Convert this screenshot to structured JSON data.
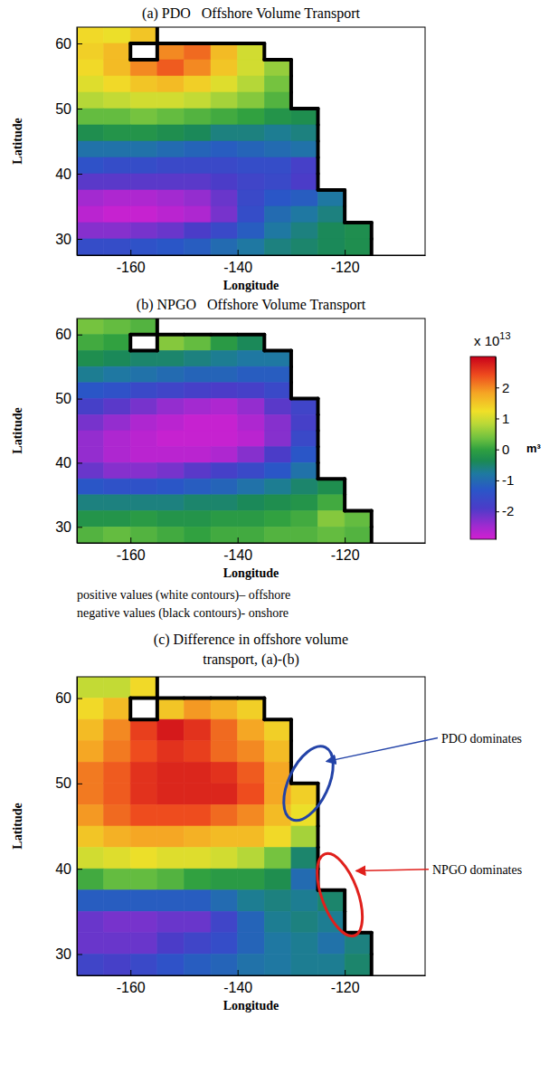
{
  "chart_data": [
    {
      "type": "heatmap",
      "title": "(a) PDO   Offshore Volume Transport",
      "x_label": "Longitude",
      "y_label": "Latitude",
      "x": [
        -167.5,
        -162.5,
        -157.5,
        -152.5,
        -147.5,
        -142.5,
        -137.5,
        -132.5,
        -127.5,
        -122.5,
        -117.5,
        -112.5,
        -107.5
      ],
      "y": [
        61.25,
        58.75,
        56.25,
        53.75,
        51.25,
        48.75,
        46.25,
        43.75,
        41.25,
        38.75,
        36.25,
        33.75,
        31.25,
        28.75
      ],
      "cells": [
        [
          1.3,
          1.2,
          1.5,
          null,
          null,
          null,
          null,
          null,
          null,
          null,
          null,
          null,
          null
        ],
        [
          1.4,
          1.6,
          null,
          2.0,
          2.2,
          1.6,
          1.0,
          null,
          null,
          null,
          null,
          null,
          null
        ],
        [
          1.3,
          1.6,
          2.0,
          2.3,
          2.0,
          1.5,
          1.0,
          0.6,
          null,
          null,
          null,
          null,
          null
        ],
        [
          1.1,
          1.3,
          1.5,
          1.6,
          1.4,
          1.1,
          0.8,
          0.4,
          null,
          null,
          null,
          null,
          null
        ],
        [
          0.8,
          0.9,
          1.0,
          1.0,
          0.9,
          0.7,
          0.5,
          0.2,
          null,
          null,
          null,
          null,
          null
        ],
        [
          0.3,
          0.3,
          0.4,
          0.3,
          0.2,
          0.1,
          0.0,
          -0.2,
          -0.3,
          null,
          null,
          null,
          null
        ],
        [
          -0.3,
          -0.2,
          -0.2,
          -0.3,
          -0.4,
          -0.6,
          -0.6,
          -0.7,
          -0.6,
          null,
          null,
          null,
          null
        ],
        [
          -0.9,
          -0.9,
          -0.9,
          -1.0,
          -1.1,
          -1.2,
          -1.1,
          -1.0,
          -0.9,
          null,
          null,
          null,
          null
        ],
        [
          -1.4,
          -1.5,
          -1.5,
          -1.6,
          -1.6,
          -1.6,
          -1.5,
          -1.5,
          -1.8,
          null,
          null,
          null,
          null
        ],
        [
          -2.0,
          -2.0,
          -2.0,
          -2.0,
          -2.0,
          -1.9,
          -1.7,
          -1.6,
          -1.9,
          null,
          null,
          null,
          null
        ],
        [
          -2.5,
          -2.6,
          -2.6,
          -2.5,
          -2.4,
          -2.1,
          -1.6,
          -1.3,
          -1.2,
          -0.8,
          null,
          null,
          null
        ],
        [
          -2.7,
          -2.8,
          -2.8,
          -2.7,
          -2.6,
          -2.2,
          -1.5,
          -1.0,
          -0.8,
          -0.6,
          null,
          null,
          null
        ],
        [
          -2.3,
          -2.3,
          -2.2,
          -2.1,
          -1.9,
          -1.6,
          -1.2,
          -0.8,
          -0.6,
          -0.4,
          -0.3,
          null,
          null
        ],
        [
          -1.5,
          -1.5,
          -1.4,
          -1.3,
          -1.2,
          -1.0,
          -0.8,
          -0.6,
          -0.5,
          -0.4,
          -0.3,
          null,
          null
        ]
      ],
      "xlim": [
        -170,
        -105
      ],
      "ylim": [
        27.5,
        62.5
      ],
      "xticks": [
        -160,
        -140,
        -120
      ],
      "yticks": [
        30,
        40,
        50,
        60
      ]
    },
    {
      "type": "heatmap",
      "title": "(b) NPGO   Offshore Volume Transport",
      "x_label": "Longitude",
      "y_label": "Latitude",
      "x": [
        -167.5,
        -162.5,
        -157.5,
        -152.5,
        -147.5,
        -142.5,
        -137.5,
        -132.5,
        -127.5,
        -122.5,
        -117.5,
        -112.5,
        -107.5
      ],
      "y": [
        61.25,
        58.75,
        56.25,
        53.75,
        51.25,
        48.75,
        46.25,
        43.75,
        41.25,
        38.75,
        36.25,
        33.75,
        31.25,
        28.75
      ],
      "cells": [
        [
          0.4,
          0.3,
          0.2,
          null,
          null,
          null,
          null,
          null,
          null,
          null,
          null,
          null,
          null
        ],
        [
          0.1,
          0.0,
          null,
          0.5,
          0.3,
          -0.1,
          -0.4,
          null,
          null,
          null,
          null,
          null,
          null
        ],
        [
          -0.3,
          -0.4,
          -0.5,
          -0.5,
          -0.6,
          -0.7,
          -0.8,
          -0.8,
          null,
          null,
          null,
          null,
          null
        ],
        [
          -0.7,
          -0.8,
          -0.9,
          -1.0,
          -1.1,
          -1.1,
          -1.2,
          -1.2,
          null,
          null,
          null,
          null,
          null
        ],
        [
          -1.3,
          -1.4,
          -1.6,
          -1.7,
          -1.8,
          -1.9,
          -1.8,
          -1.6,
          null,
          null,
          null,
          null,
          null
        ],
        [
          -1.8,
          -2.0,
          -2.2,
          -2.4,
          -2.5,
          -2.6,
          -2.4,
          -2.0,
          -1.7,
          null,
          null,
          null,
          null
        ],
        [
          -2.2,
          -2.4,
          -2.6,
          -2.7,
          -2.8,
          -2.8,
          -2.6,
          -2.3,
          -1.8,
          null,
          null,
          null,
          null
        ],
        [
          -2.4,
          -2.6,
          -2.7,
          -2.8,
          -2.8,
          -2.8,
          -2.7,
          -2.3,
          -1.6,
          null,
          null,
          null,
          null
        ],
        [
          -2.4,
          -2.6,
          -2.7,
          -2.7,
          -2.7,
          -2.6,
          -2.3,
          -1.9,
          -1.3,
          null,
          null,
          null,
          null
        ],
        [
          -2.1,
          -2.3,
          -2.3,
          -2.2,
          -2.0,
          -1.8,
          -1.6,
          -1.3,
          -0.9,
          null,
          null,
          null,
          null
        ],
        [
          -1.3,
          -1.4,
          -1.4,
          -1.3,
          -1.2,
          -1.1,
          -0.9,
          -0.7,
          -0.5,
          -0.3,
          null,
          null,
          null
        ],
        [
          -0.6,
          -0.6,
          -0.6,
          -0.6,
          -0.5,
          -0.5,
          -0.4,
          -0.3,
          -0.2,
          0.1,
          null,
          null,
          null
        ],
        [
          -0.2,
          -0.2,
          -0.1,
          -0.2,
          -0.2,
          -0.1,
          -0.1,
          0.0,
          0.1,
          0.5,
          0.3,
          null,
          null
        ],
        [
          0.2,
          0.3,
          0.2,
          0.1,
          0.0,
          0.1,
          0.1,
          0.2,
          0.2,
          0.3,
          0.2,
          null,
          null
        ]
      ],
      "xlim": [
        -170,
        -105
      ],
      "ylim": [
        27.5,
        62.5
      ],
      "xticks": [
        -160,
        -140,
        -120
      ],
      "yticks": [
        30,
        40,
        50,
        60
      ],
      "colorbar": {
        "range": [
          -2.9,
          3.0
        ],
        "ticks": [
          -2,
          -1,
          0,
          1,
          2
        ],
        "multiplier": "x 10",
        "exponent": 13,
        "unit": "m³"
      },
      "notes": [
        "positive values (white contours)– offshore",
        "negative values (black contours)- onshore"
      ]
    },
    {
      "type": "heatmap",
      "title": "(c) Difference in offshore volume transport, (a)-(b)",
      "x_label": "Longitude",
      "y_label": "Latitude",
      "x": [
        -167.5,
        -162.5,
        -157.5,
        -152.5,
        -147.5,
        -142.5,
        -137.5,
        -132.5,
        -127.5,
        -122.5,
        -117.5,
        -112.5,
        -107.5
      ],
      "y": [
        61.25,
        58.75,
        56.25,
        53.75,
        51.25,
        48.75,
        46.25,
        43.75,
        41.25,
        38.75,
        36.25,
        33.75,
        31.25,
        28.75
      ],
      "cells": [
        [
          0.9,
          0.9,
          1.3,
          null,
          null,
          null,
          null,
          null,
          null,
          null,
          null,
          null,
          null
        ],
        [
          1.3,
          1.6,
          null,
          1.5,
          1.9,
          1.7,
          1.4,
          null,
          null,
          null,
          null,
          null,
          null
        ],
        [
          1.6,
          2.0,
          2.5,
          2.8,
          2.6,
          2.2,
          1.8,
          1.4,
          null,
          null,
          null,
          null,
          null
        ],
        [
          1.8,
          2.1,
          2.4,
          2.6,
          2.5,
          2.2,
          2.0,
          1.6,
          null,
          null,
          null,
          null,
          null
        ],
        [
          2.1,
          2.3,
          2.6,
          2.7,
          2.7,
          2.6,
          2.3,
          1.8,
          null,
          null,
          null,
          null,
          null
        ],
        [
          2.1,
          2.3,
          2.6,
          2.7,
          2.7,
          2.7,
          2.4,
          1.8,
          1.4,
          null,
          null,
          null,
          null
        ],
        [
          1.9,
          2.2,
          2.4,
          2.4,
          2.4,
          2.2,
          2.0,
          1.6,
          1.2,
          null,
          null,
          null,
          null
        ],
        [
          1.5,
          1.7,
          1.8,
          1.8,
          1.7,
          1.6,
          1.6,
          1.3,
          0.7,
          null,
          null,
          null,
          null
        ],
        [
          1.0,
          1.1,
          1.2,
          1.1,
          1.1,
          1.0,
          0.8,
          0.4,
          -0.5,
          null,
          null,
          null,
          null
        ],
        [
          0.1,
          0.3,
          0.3,
          0.2,
          0.0,
          -0.1,
          -0.1,
          -0.3,
          -1.0,
          null,
          null,
          null,
          null
        ],
        [
          -1.2,
          -1.2,
          -1.2,
          -1.2,
          -1.2,
          -1.0,
          -0.7,
          -0.6,
          -0.7,
          -0.5,
          null,
          null,
          null
        ],
        [
          -2.1,
          -2.2,
          -2.2,
          -2.1,
          -2.1,
          -1.7,
          -1.1,
          -0.7,
          -0.6,
          -0.7,
          null,
          null,
          null
        ],
        [
          -2.1,
          -2.1,
          -2.1,
          -1.9,
          -1.7,
          -1.5,
          -1.1,
          -0.8,
          -0.7,
          -0.9,
          -0.6,
          null,
          null
        ],
        [
          -1.7,
          -1.8,
          -1.6,
          -1.4,
          -1.2,
          -1.1,
          -0.9,
          -0.8,
          -0.7,
          -0.7,
          -0.5,
          null,
          null
        ]
      ],
      "xlim": [
        -170,
        -105
      ],
      "ylim": [
        27.5,
        62.5
      ],
      "xticks": [
        -160,
        -140,
        -120
      ],
      "yticks": [
        30,
        40,
        50,
        60
      ],
      "annotations": [
        {
          "text": "PDO dominates",
          "color": "#2343a8"
        },
        {
          "text": "NPGO dominates",
          "color": "#e0201c"
        }
      ]
    }
  ]
}
